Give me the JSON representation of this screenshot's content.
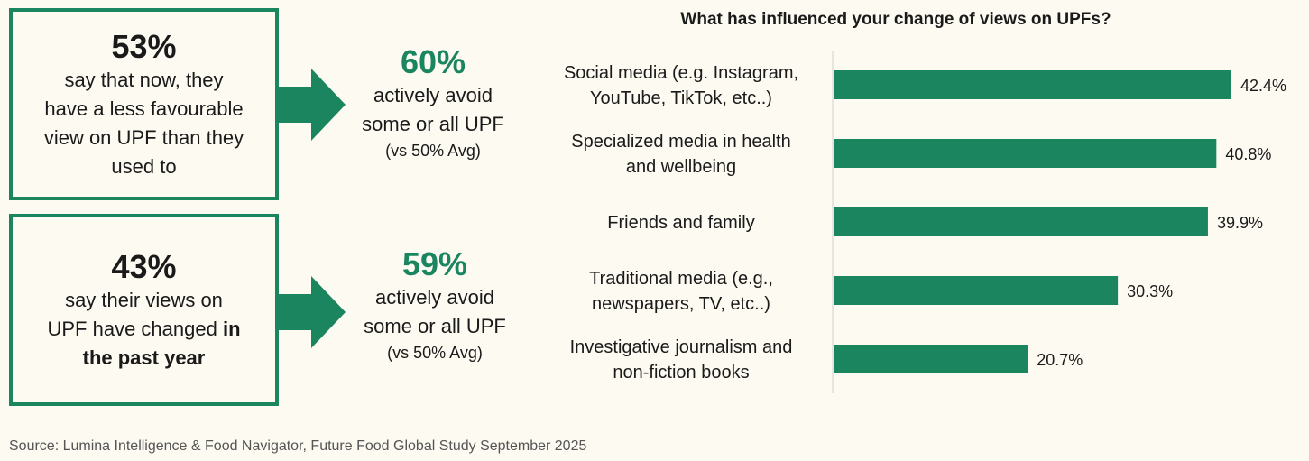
{
  "left_panel": {
    "box1": {
      "percent": "53%",
      "lines": [
        "say that now, they",
        "have a less favourable",
        "view on UPF than they",
        "used to"
      ]
    },
    "box2": {
      "percent": "43%",
      "line1": "say their views on",
      "line2_plain": "UPF have changed ",
      "line2_bold": "in",
      "line3_bold": "the past year"
    },
    "stat1": {
      "percent": "60%",
      "line1": "actively avoid",
      "line2": "some or all UPF",
      "note": "(vs 50% Avg)"
    },
    "stat2": {
      "percent": "59%",
      "line1": "actively avoid",
      "line2": "some or all UPF",
      "note": "(vs 50% Avg)"
    }
  },
  "colors": {
    "accent": "#1b8560",
    "text": "#1a1a1a",
    "muted": "#555555",
    "background": "#fdfaf2"
  },
  "chart_data": {
    "type": "bar",
    "orientation": "horizontal",
    "title": "What has influenced your change of views on UPFs?",
    "categories": [
      [
        "Social media (e.g. Instagram,",
        "YouTube, TikTok, etc..)"
      ],
      [
        "Specialized media in health",
        "and wellbeing"
      ],
      [
        "Friends and family"
      ],
      [
        "Traditional media (e.g.,",
        "newspapers, TV, etc..)"
      ],
      [
        "Investigative journalism and",
        "non-fiction books"
      ]
    ],
    "values": [
      42.4,
      40.8,
      39.9,
      30.3,
      20.7
    ],
    "value_labels": [
      "42.4%",
      "40.8%",
      "39.9%",
      "30.3%",
      "20.7%"
    ],
    "xlim": [
      0,
      50
    ],
    "grid": false
  },
  "source": "Source: Lumina Intelligence & Food Navigator, Future Food Global Study September 2025"
}
